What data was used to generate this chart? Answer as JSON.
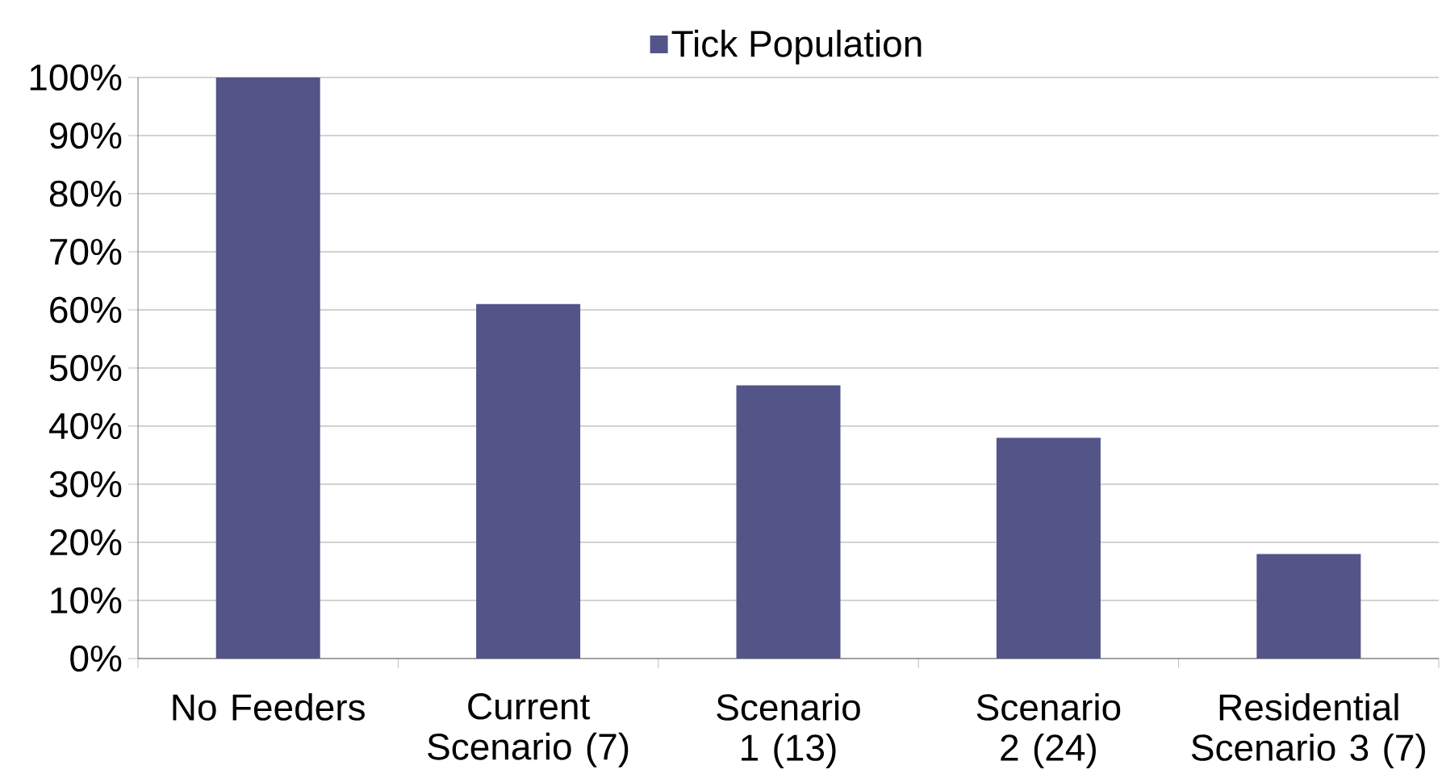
{
  "chart_data": {
    "type": "bar",
    "categories": [
      "No Feeders",
      "Current Scenario (7)",
      "Scenario 1 (13)",
      "Scenario 2 (24)",
      "Residential Scenario 3 (7)"
    ],
    "series": [
      {
        "name": "Tick Population",
        "color": "#535488",
        "values": [
          100,
          61,
          47,
          38,
          18
        ]
      }
    ],
    "ylim": [
      0,
      100
    ],
    "yticks": [
      {
        "value": 0,
        "label": "0%"
      },
      {
        "value": 10,
        "label": "10%"
      },
      {
        "value": 20,
        "label": "20%"
      },
      {
        "value": 30,
        "label": "30%"
      },
      {
        "value": 40,
        "label": "40%"
      },
      {
        "value": 50,
        "label": "50%"
      },
      {
        "value": 60,
        "label": "60%"
      },
      {
        "value": 70,
        "label": "70%"
      },
      {
        "value": 80,
        "label": "80%"
      },
      {
        "value": 90,
        "label": "90%"
      },
      {
        "value": 100,
        "label": "100%"
      }
    ],
    "grid": "y",
    "legend": "top"
  }
}
